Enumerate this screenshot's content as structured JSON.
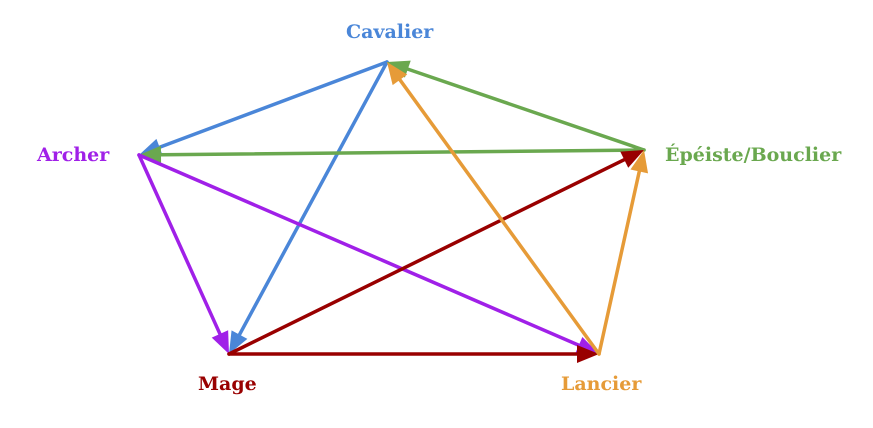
{
  "diagram": {
    "nodes": {
      "cavalier": {
        "label": "Cavalier",
        "color": "#4a86d8"
      },
      "archer": {
        "label": "Archer",
        "color": "#a020e8"
      },
      "epeiste": {
        "label": "Épéiste/Bouclier",
        "color": "#6aa84f"
      },
      "mage": {
        "label": "Mage",
        "color": "#990000"
      },
      "lancier": {
        "label": "Lancier",
        "color": "#e69b38"
      }
    },
    "edges": [
      {
        "from": "cavalier",
        "to": "archer",
        "color": "#4a86d8"
      },
      {
        "from": "cavalier",
        "to": "mage",
        "color": "#4a86d8"
      },
      {
        "from": "epeiste",
        "to": "cavalier",
        "color": "#6aa84f"
      },
      {
        "from": "epeiste",
        "to": "archer",
        "color": "#6aa84f"
      },
      {
        "from": "archer",
        "to": "mage",
        "color": "#a020e8"
      },
      {
        "from": "archer",
        "to": "lancier",
        "color": "#a020e8"
      },
      {
        "from": "mage",
        "to": "epeiste",
        "color": "#990000"
      },
      {
        "from": "mage",
        "to": "lancier",
        "color": "#990000"
      },
      {
        "from": "lancier",
        "to": "cavalier",
        "color": "#e69b38"
      },
      {
        "from": "lancier",
        "to": "epeiste",
        "color": "#e69b38"
      }
    ]
  }
}
